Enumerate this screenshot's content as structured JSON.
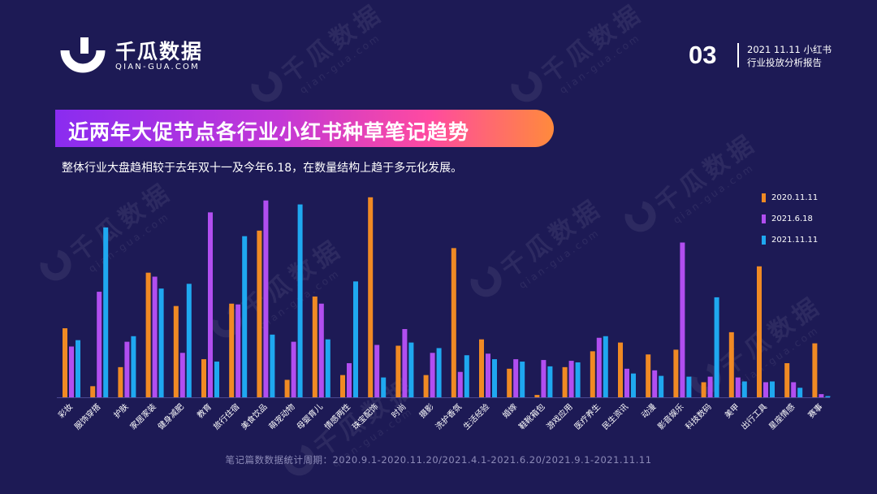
{
  "header": {
    "brand_name": "千瓜数据",
    "brand_domain": "QIAN-GUA.COM",
    "page_number": "03",
    "report_title_line1": "2021 11.11 小红书",
    "report_title_line2": "行业投放分析报告"
  },
  "watermark": {
    "text": "千瓜数据",
    "sub": "qian-gua.com"
  },
  "title": "近两年大促节点各行业小红书种草笔记趋势",
  "subtitle": "整体行业大盘趋相较于去年双十一及今年6.18，在数量结构上趋于多元化发展。",
  "footnote": "笔记篇数数据统计周期：2020.9.1-2020.11.20/2021.4.1-2021.6.20/2021.9.1-2021.11.11",
  "colors": {
    "background": "#1d1a55",
    "series_2020_11_11": "#f08a24",
    "series_2021_6_18": "#b14ef0",
    "series_2021_11_11": "#1fa8f0"
  },
  "chart_data": {
    "type": "bar",
    "categories": [
      "彩妆",
      "服饰穿搭",
      "护肤",
      "家居家装",
      "健身减肥",
      "教育",
      "旅行住宿",
      "美食饮品",
      "萌宠动物",
      "母婴育儿",
      "情感两性",
      "珠宝配饰",
      "时尚",
      "摄影",
      "洗护香氛",
      "生活经验",
      "婚嫁",
      "鞋靴箱包",
      "游戏应用",
      "医疗养生",
      "民生资讯",
      "动漫",
      "影音娱乐",
      "科技数码",
      "美甲",
      "出行工具",
      "星座情感",
      "赛事"
    ],
    "series": [
      {
        "name": "2020.11.11",
        "color": "#f08a24",
        "values": [
          87,
          14,
          38,
          157,
          115,
          48,
          118,
          210,
          22,
          127,
          28,
          252,
          65,
          28,
          188,
          73,
          36,
          3,
          38,
          58,
          69,
          54,
          60,
          19,
          82,
          165,
          43,
          68
        ]
      },
      {
        "name": "2021.6.18",
        "color": "#b14ef0",
        "values": [
          64,
          133,
          70,
          152,
          56,
          233,
          117,
          248,
          70,
          118,
          43,
          66,
          86,
          56,
          32,
          55,
          48,
          47,
          46,
          75,
          36,
          34,
          195,
          26,
          25,
          19,
          19,
          4
        ]
      },
      {
        "name": "2021.11.11",
        "color": "#1fa8f0",
        "values": [
          72,
          214,
          77,
          137,
          143,
          45,
          203,
          79,
          243,
          73,
          146,
          25,
          69,
          62,
          53,
          48,
          45,
          39,
          44,
          77,
          30,
          27,
          26,
          126,
          20,
          20,
          12,
          1
        ]
      }
    ],
    "ylim": [
      0,
      260
    ],
    "legend_position": "top-right",
    "grid": false
  }
}
